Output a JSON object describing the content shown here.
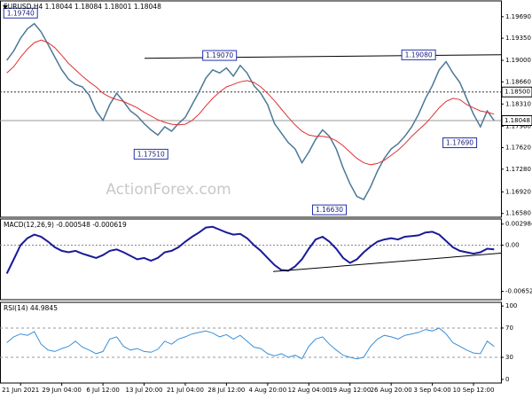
{
  "chart_data": [
    {
      "type": "line",
      "title": "EURUSD,H4  1.18044 1.18084 1.18001 1.18048",
      "x": [
        0,
        1,
        2,
        3,
        4,
        5,
        6,
        7,
        8,
        9,
        10,
        11,
        12,
        13,
        14,
        15,
        16,
        17,
        18,
        19,
        20,
        21,
        22,
        23,
        24,
        25,
        26,
        27,
        28,
        29,
        30,
        31,
        32,
        33,
        34,
        35,
        36,
        37,
        38,
        39,
        40,
        41,
        42,
        43,
        44,
        45,
        46,
        47,
        48,
        49,
        50,
        51,
        52,
        53,
        54,
        55,
        56,
        57,
        58,
        59,
        60,
        61,
        62,
        63,
        64,
        65,
        66,
        67,
        68,
        69,
        70,
        71
      ],
      "xlim": [
        -1,
        72
      ],
      "ylim": [
        1.1652,
        1.1994
      ],
      "yticks": [
        {
          "value": 1.1969,
          "label": "1.19690"
        },
        {
          "value": 1.1935,
          "label": "1.19350"
        },
        {
          "value": 1.19,
          "label": "1.19000"
        },
        {
          "value": 1.1866,
          "label": "1.18660"
        },
        {
          "value": 1.1831,
          "label": "1.18310"
        },
        {
          "value": 1.1796,
          "label": "1.17960"
        },
        {
          "value": 1.1762,
          "label": "1.17620"
        },
        {
          "value": 1.1728,
          "label": "1.17280"
        },
        {
          "value": 1.1692,
          "label": "1.16920"
        },
        {
          "value": 1.1658,
          "label": "1.16580"
        }
      ],
      "series": [
        {
          "color": "#4a7898",
          "width": 1.5,
          "values": [
            1.19,
            1.1915,
            1.1935,
            1.195,
            1.1958,
            1.1945,
            1.1925,
            1.1905,
            1.1885,
            1.187,
            1.1862,
            1.1858,
            1.1845,
            1.182,
            1.1805,
            1.183,
            1.1848,
            1.1835,
            1.182,
            1.1812,
            1.18,
            1.179,
            1.1782,
            1.1795,
            1.1788,
            1.18,
            1.181,
            1.183,
            1.185,
            1.1872,
            1.1885,
            1.188,
            1.1888,
            1.1875,
            1.1892,
            1.188,
            1.186,
            1.1848,
            1.183,
            1.18,
            1.1785,
            1.177,
            1.176,
            1.1738,
            1.1755,
            1.1775,
            1.179,
            1.178,
            1.176,
            1.173,
            1.1705,
            1.1685,
            1.168,
            1.17,
            1.1725,
            1.1745,
            1.176,
            1.1768,
            1.178,
            1.1795,
            1.1815,
            1.184,
            1.186,
            1.1885,
            1.1898,
            1.188,
            1.1865,
            1.184,
            1.1815,
            1.1795,
            1.182,
            1.18048
          ]
        },
        {
          "color": "#e03030",
          "width": 1,
          "values": [
            1.188,
            1.189,
            1.1905,
            1.1918,
            1.1928,
            1.1932,
            1.1928,
            1.192,
            1.1908,
            1.1895,
            1.1885,
            1.1875,
            1.1866,
            1.1858,
            1.1848,
            1.1842,
            1.1838,
            1.1835,
            1.183,
            1.1825,
            1.1818,
            1.1812,
            1.1806,
            1.1802,
            1.1799,
            1.1798,
            1.1799,
            1.1805,
            1.1815,
            1.1828,
            1.184,
            1.185,
            1.1858,
            1.1862,
            1.1866,
            1.1868,
            1.1865,
            1.1858,
            1.1848,
            1.1836,
            1.1823,
            1.181,
            1.1798,
            1.1788,
            1.1782,
            1.178,
            1.178,
            1.1778,
            1.1773,
            1.1765,
            1.1755,
            1.1745,
            1.1738,
            1.1735,
            1.1737,
            1.1742,
            1.175,
            1.1758,
            1.1768,
            1.178,
            1.179,
            1.18,
            1.1812,
            1.1825,
            1.1835,
            1.184,
            1.1838,
            1.183,
            1.1825,
            1.182,
            1.1818,
            1.1815
          ]
        }
      ],
      "levels": [
        {
          "value": 1.185,
          "label": "1.18500",
          "style": "dotted"
        },
        {
          "value": 1.18048,
          "label": "1.18048",
          "style": "solid"
        }
      ],
      "annotations": [
        {
          "x": 2,
          "value": 1.1974,
          "label": "1.19740"
        },
        {
          "x": 31,
          "value": 1.1907,
          "label": "1.19070"
        },
        {
          "x": 60,
          "value": 1.1908,
          "label": "1.19080"
        },
        {
          "x": 21,
          "value": 1.1751,
          "label": "1.17510"
        },
        {
          "x": 47,
          "value": 1.1663,
          "label": "1.16630"
        },
        {
          "x": 66,
          "value": 1.1769,
          "label": "1.17690"
        }
      ],
      "trendlines": [
        {
          "x": [
            20.06,
            72
          ],
          "y": [
            1.19033,
            1.19089
          ]
        }
      ],
      "watermark": "ActionForex.com"
    },
    {
      "type": "line",
      "title": "MACD(12,26,9) -0.000548 -0.000619",
      "x": [
        0,
        1,
        2,
        3,
        4,
        5,
        6,
        7,
        8,
        9,
        10,
        11,
        12,
        13,
        14,
        15,
        16,
        17,
        18,
        19,
        20,
        21,
        22,
        23,
        24,
        25,
        26,
        27,
        28,
        29,
        30,
        31,
        32,
        33,
        34,
        35,
        36,
        37,
        38,
        39,
        40,
        41,
        42,
        43,
        44,
        45,
        46,
        47,
        48,
        49,
        50,
        51,
        52,
        53,
        54,
        55,
        56,
        57,
        58,
        59,
        60,
        61,
        62,
        63,
        64,
        65,
        66,
        67,
        68,
        69,
        70,
        71
      ],
      "xlim": [
        -1,
        72
      ],
      "ylim": [
        -0.0077,
        0.0037
      ],
      "yticks": [
        0.002984,
        {
          "value": 0,
          "label": "0.00"
        },
        -0.006521
      ],
      "series": [
        {
          "color": "#1a1a9a",
          "width": 2,
          "values": [
            -0.004,
            -0.002,
            0.0,
            0.001,
            0.0015,
            0.0012,
            0.0005,
            -0.0003,
            -0.0008,
            -0.001,
            -0.0008,
            -0.0012,
            -0.0015,
            -0.0018,
            -0.0014,
            -0.0008,
            -0.0006,
            -0.001,
            -0.0015,
            -0.002,
            -0.0018,
            -0.0022,
            -0.0018,
            -0.001,
            -0.0008,
            -0.0003,
            0.0005,
            0.0012,
            0.0018,
            0.0025,
            0.0026,
            0.0022,
            0.0018,
            0.0015,
            0.0016,
            0.001,
            0.0,
            -0.0008,
            -0.0018,
            -0.0028,
            -0.0035,
            -0.0036,
            -0.003,
            -0.002,
            -0.0005,
            0.0008,
            0.0012,
            0.0005,
            -0.0005,
            -0.0018,
            -0.0025,
            -0.002,
            -0.001,
            -0.0002,
            0.0005,
            0.0008,
            0.001,
            0.0008,
            0.0012,
            0.0013,
            0.0014,
            0.0018,
            0.0019,
            0.0015,
            0.0006,
            -0.0003,
            -0.0008,
            -0.001,
            -0.0012,
            -0.001,
            -0.0005,
            -0.0006
          ]
        }
      ],
      "zero_line": 0,
      "trendlines": [
        {
          "x": [
            38.8,
            72
          ],
          "y": [
            -0.00373,
            -0.00113
          ]
        }
      ]
    },
    {
      "type": "line",
      "title": "RSI(14) 44.9845",
      "x": [
        0,
        1,
        2,
        3,
        4,
        5,
        6,
        7,
        8,
        9,
        10,
        11,
        12,
        13,
        14,
        15,
        16,
        17,
        18,
        19,
        20,
        21,
        22,
        23,
        24,
        25,
        26,
        27,
        28,
        29,
        30,
        31,
        32,
        33,
        34,
        35,
        36,
        37,
        38,
        39,
        40,
        41,
        42,
        43,
        44,
        45,
        46,
        47,
        48,
        49,
        50,
        51,
        52,
        53,
        54,
        55,
        56,
        57,
        58,
        59,
        60,
        61,
        62,
        63,
        64,
        65,
        66,
        67,
        68,
        69,
        70,
        71
      ],
      "xlim": [
        -1,
        72
      ],
      "ylim": [
        -5,
        105
      ],
      "yticks": [
        100,
        70,
        30,
        0
      ],
      "dashed_levels": [
        70,
        30
      ],
      "series": [
        {
          "color": "#3a8fd8",
          "width": 1,
          "values": [
            50,
            58,
            62,
            60,
            65,
            48,
            40,
            38,
            42,
            45,
            52,
            44,
            40,
            35,
            38,
            55,
            58,
            45,
            40,
            42,
            38,
            37,
            41,
            52,
            48,
            55,
            58,
            62,
            64,
            66,
            63,
            58,
            61,
            55,
            60,
            52,
            44,
            42,
            35,
            32,
            35,
            30,
            33,
            28,
            45,
            55,
            58,
            48,
            40,
            33,
            30,
            28,
            30,
            45,
            55,
            60,
            58,
            55,
            60,
            62,
            64,
            68,
            66,
            70,
            62,
            50,
            45,
            40,
            36,
            35,
            52,
            44.98
          ]
        }
      ],
      "xticks": [
        {
          "value": 2,
          "label": "21 Jun 2021"
        },
        {
          "value": 8,
          "label": "29 Jun 04:00"
        },
        {
          "value": 14,
          "label": "6 Jul 12:00"
        },
        {
          "value": 20,
          "label": "13 Jul 20:00"
        },
        {
          "value": 26,
          "label": "21 Jul 04:00"
        },
        {
          "value": 32,
          "label": "28 Jul 12:00"
        },
        {
          "value": 38,
          "label": "4 Aug 20:00"
        },
        {
          "value": 44,
          "label": "12 Aug 04:00"
        },
        {
          "value": 50,
          "label": "19 Aug 12:00"
        },
        {
          "value": 56,
          "label": "26 Aug 20:00"
        },
        {
          "value": 62,
          "label": "3 Sep 04:00"
        },
        {
          "value": 68,
          "label": "10 Sep 12:00"
        }
      ]
    }
  ]
}
